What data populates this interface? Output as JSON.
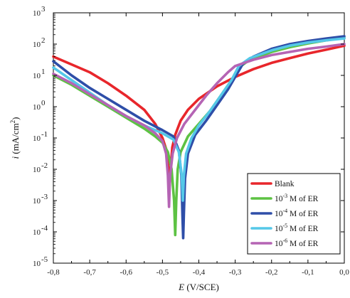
{
  "chart_data": {
    "type": "line",
    "xlabel_italic": "E",
    "xlabel_rest": " (V/SCE)",
    "ylabel_italic": "i",
    "ylabel_rest": " (mA/cm",
    "ylabel_sup": "2",
    "ylabel_close": ")",
    "xlim": [
      -0.8,
      0.0
    ],
    "ylim": [
      -5,
      3
    ],
    "y_scale": "log",
    "x_ticks": [
      {
        "v": -0.8,
        "label": "-0,8"
      },
      {
        "v": -0.7,
        "label": "-0,7"
      },
      {
        "v": -0.6,
        "label": "-0,6"
      },
      {
        "v": -0.5,
        "label": "-0,5"
      },
      {
        "v": -0.4,
        "label": "-0,4"
      },
      {
        "v": -0.3,
        "label": "-0,3"
      },
      {
        "v": -0.2,
        "label": "-0,2"
      },
      {
        "v": -0.1,
        "label": "-0,1"
      },
      {
        "v": 0.0,
        "label": "0,0"
      }
    ],
    "y_ticks": [
      {
        "e": -5,
        "base": "10",
        "exp": "-5"
      },
      {
        "e": -4,
        "base": "10",
        "exp": "-4"
      },
      {
        "e": -3,
        "base": "10",
        "exp": "-3"
      },
      {
        "e": -2,
        "base": "10",
        "exp": "-2"
      },
      {
        "e": -1,
        "base": "10",
        "exp": "-1"
      },
      {
        "e": 0,
        "base": "10",
        "exp": "0"
      },
      {
        "e": 1,
        "base": "10",
        "exp": "1"
      },
      {
        "e": 2,
        "base": "10",
        "exp": "2"
      },
      {
        "e": 3,
        "base": "10",
        "exp": "3"
      }
    ],
    "legend_position": "bottom-right",
    "grid": false,
    "series": [
      {
        "id": "blank",
        "label_pre": "Blank",
        "label_exp": "",
        "label_post": "",
        "color": "#e8262b",
        "points": [
          [
            -0.8,
            1.6
          ],
          [
            -0.75,
            1.35
          ],
          [
            -0.7,
            1.1
          ],
          [
            -0.65,
            0.75
          ],
          [
            -0.6,
            0.35
          ],
          [
            -0.55,
            -0.1
          ],
          [
            -0.52,
            -0.55
          ],
          [
            -0.5,
            -1.0
          ],
          [
            -0.49,
            -1.35
          ],
          [
            -0.485,
            -1.8
          ],
          [
            -0.48,
            -2.5
          ],
          [
            -0.477,
            -1.9
          ],
          [
            -0.473,
            -1.3
          ],
          [
            -0.465,
            -0.9
          ],
          [
            -0.45,
            -0.45
          ],
          [
            -0.43,
            -0.1
          ],
          [
            -0.4,
            0.25
          ],
          [
            -0.35,
            0.65
          ],
          [
            -0.3,
            0.95
          ],
          [
            -0.25,
            1.2
          ],
          [
            -0.2,
            1.4
          ],
          [
            -0.15,
            1.55
          ],
          [
            -0.1,
            1.7
          ],
          [
            -0.05,
            1.82
          ],
          [
            0.0,
            1.95
          ]
        ]
      },
      {
        "id": "er3",
        "label_pre": "10",
        "label_exp": "-3",
        "label_post": " M of ER",
        "color": "#5dc243",
        "points": [
          [
            -0.8,
            1.0
          ],
          [
            -0.75,
            0.7
          ],
          [
            -0.7,
            0.35
          ],
          [
            -0.65,
            0.0
          ],
          [
            -0.6,
            -0.35
          ],
          [
            -0.55,
            -0.7
          ],
          [
            -0.52,
            -0.95
          ],
          [
            -0.5,
            -1.15
          ],
          [
            -0.485,
            -1.45
          ],
          [
            -0.475,
            -2.0
          ],
          [
            -0.468,
            -3.0
          ],
          [
            -0.465,
            -4.1
          ],
          [
            -0.462,
            -3.0
          ],
          [
            -0.458,
            -2.0
          ],
          [
            -0.45,
            -1.45
          ],
          [
            -0.43,
            -0.95
          ],
          [
            -0.4,
            -0.55
          ],
          [
            -0.37,
            -0.15
          ],
          [
            -0.34,
            0.35
          ],
          [
            -0.31,
            0.85
          ],
          [
            -0.29,
            1.25
          ],
          [
            -0.26,
            1.5
          ],
          [
            -0.2,
            1.75
          ],
          [
            -0.15,
            1.9
          ],
          [
            -0.1,
            2.02
          ],
          [
            -0.05,
            2.12
          ],
          [
            0.0,
            2.2
          ]
        ]
      },
      {
        "id": "er4",
        "label_pre": "10",
        "label_exp": "-4",
        "label_post": " M of ER",
        "color": "#2e4ea8",
        "points": [
          [
            -0.8,
            1.45
          ],
          [
            -0.75,
            1.0
          ],
          [
            -0.7,
            0.6
          ],
          [
            -0.65,
            0.25
          ],
          [
            -0.6,
            -0.1
          ],
          [
            -0.55,
            -0.45
          ],
          [
            -0.5,
            -0.75
          ],
          [
            -0.47,
            -0.95
          ],
          [
            -0.455,
            -1.4
          ],
          [
            -0.448,
            -2.2
          ],
          [
            -0.445,
            -3.5
          ],
          [
            -0.443,
            -4.2
          ],
          [
            -0.441,
            -3.4
          ],
          [
            -0.438,
            -2.3
          ],
          [
            -0.43,
            -1.5
          ],
          [
            -0.41,
            -0.9
          ],
          [
            -0.38,
            -0.45
          ],
          [
            -0.35,
            0.05
          ],
          [
            -0.32,
            0.55
          ],
          [
            -0.3,
            0.95
          ],
          [
            -0.28,
            1.35
          ],
          [
            -0.25,
            1.6
          ],
          [
            -0.2,
            1.85
          ],
          [
            -0.15,
            2.0
          ],
          [
            -0.1,
            2.1
          ],
          [
            -0.05,
            2.18
          ],
          [
            0.0,
            2.25
          ]
        ]
      },
      {
        "id": "er5",
        "label_pre": "10",
        "label_exp": "-5",
        "label_post": " M of ER",
        "color": "#55c8e8",
        "points": [
          [
            -0.8,
            1.25
          ],
          [
            -0.75,
            0.85
          ],
          [
            -0.7,
            0.45
          ],
          [
            -0.65,
            0.05
          ],
          [
            -0.6,
            -0.3
          ],
          [
            -0.55,
            -0.6
          ],
          [
            -0.5,
            -0.85
          ],
          [
            -0.47,
            -1.05
          ],
          [
            -0.455,
            -1.45
          ],
          [
            -0.447,
            -2.2
          ],
          [
            -0.444,
            -3.0
          ],
          [
            -0.441,
            -2.2
          ],
          [
            -0.435,
            -1.5
          ],
          [
            -0.42,
            -1.0
          ],
          [
            -0.4,
            -0.6
          ],
          [
            -0.37,
            -0.15
          ],
          [
            -0.34,
            0.35
          ],
          [
            -0.31,
            0.85
          ],
          [
            -0.29,
            1.3
          ],
          [
            -0.26,
            1.55
          ],
          [
            -0.2,
            1.8
          ],
          [
            -0.15,
            1.95
          ],
          [
            -0.1,
            2.05
          ],
          [
            -0.05,
            2.12
          ],
          [
            0.0,
            2.18
          ]
        ]
      },
      {
        "id": "er6",
        "label_pre": "10",
        "label_exp": "-6",
        "label_post": " M of ER",
        "color": "#b564b4",
        "points": [
          [
            -0.8,
            1.05
          ],
          [
            -0.75,
            0.75
          ],
          [
            -0.7,
            0.4
          ],
          [
            -0.65,
            0.05
          ],
          [
            -0.6,
            -0.3
          ],
          [
            -0.55,
            -0.6
          ],
          [
            -0.52,
            -0.85
          ],
          [
            -0.5,
            -1.1
          ],
          [
            -0.49,
            -1.5
          ],
          [
            -0.485,
            -2.2
          ],
          [
            -0.482,
            -3.2
          ],
          [
            -0.479,
            -2.2
          ],
          [
            -0.472,
            -1.5
          ],
          [
            -0.46,
            -1.0
          ],
          [
            -0.44,
            -0.55
          ],
          [
            -0.41,
            -0.1
          ],
          [
            -0.38,
            0.35
          ],
          [
            -0.35,
            0.75
          ],
          [
            -0.32,
            1.1
          ],
          [
            -0.3,
            1.3
          ],
          [
            -0.25,
            1.5
          ],
          [
            -0.2,
            1.65
          ],
          [
            -0.15,
            1.75
          ],
          [
            -0.1,
            1.85
          ],
          [
            -0.05,
            1.92
          ],
          [
            0.0,
            2.0
          ]
        ]
      }
    ]
  }
}
